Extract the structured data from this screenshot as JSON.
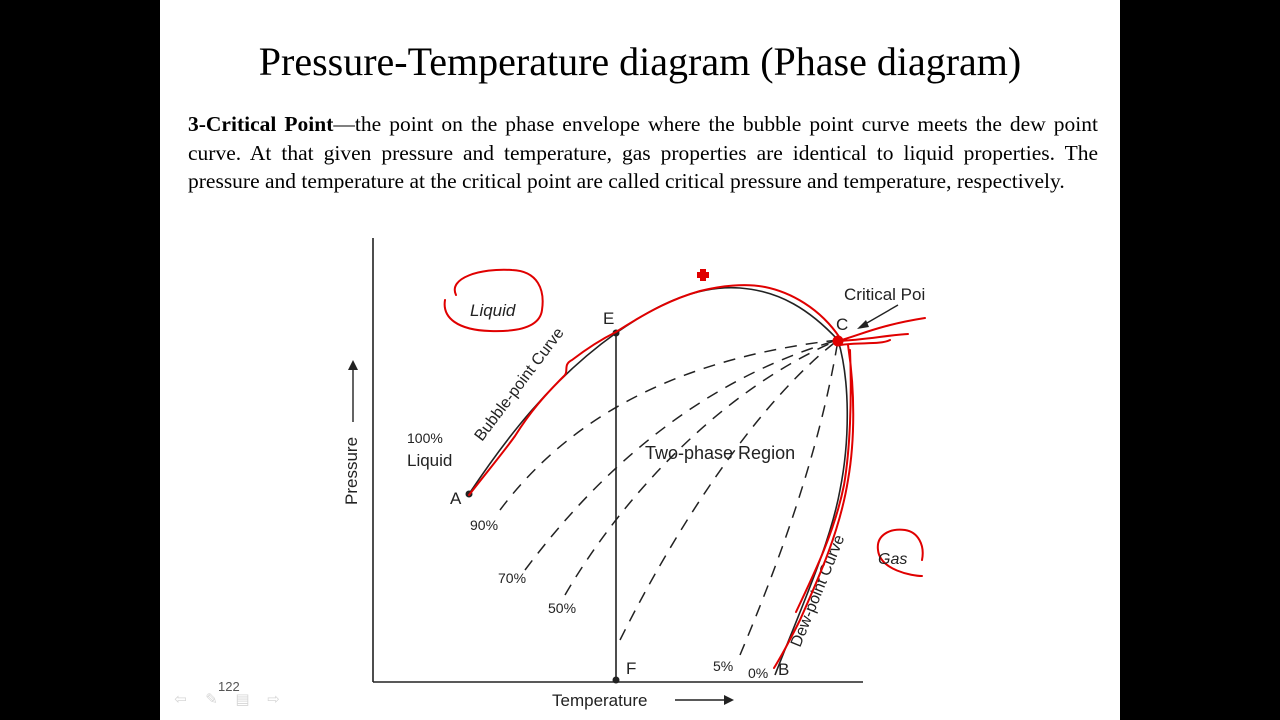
{
  "slide": {
    "title": "Pressure-Temperature diagram (Phase diagram)",
    "paragraph": {
      "bold_lead": "3-Critical Point",
      "text": "—the point on the phase envelope where the bubble point curve meets the dew point curve. At that given pressure and temperature, gas properties are identical to liquid properties. The pressure and temperature at the critical point are called critical pressure and temperature, respectively."
    },
    "slide_number": "122"
  },
  "diagram": {
    "axes": {
      "y_label": "Pressure",
      "x_label": "Temperature"
    },
    "labels": {
      "liquid_100": "100%",
      "liquid_word": "Liquid",
      "point_a": "A",
      "point_b": "B",
      "point_c": "C",
      "point_e": "E",
      "point_f": "F",
      "bubble_curve": "Bubble-point Curve",
      "dew_curve": "Dew-point Curve",
      "two_phase": "Two-phase Region",
      "critical_point": "Critical Poi",
      "q90": "90%",
      "q70": "70%",
      "q50": "50%",
      "q5": "5%",
      "q0": "0%"
    },
    "annotations": {
      "liquid_circled": "Liquid",
      "gas_circled": "Gas"
    },
    "colors": {
      "ink": "#222222",
      "annotation_red": "#e00000"
    }
  },
  "nav": {
    "prev_icon": "left-arrow-icon",
    "pen_icon": "pen-icon",
    "menu_icon": "menu-icon",
    "next_icon": "right-arrow-icon"
  }
}
